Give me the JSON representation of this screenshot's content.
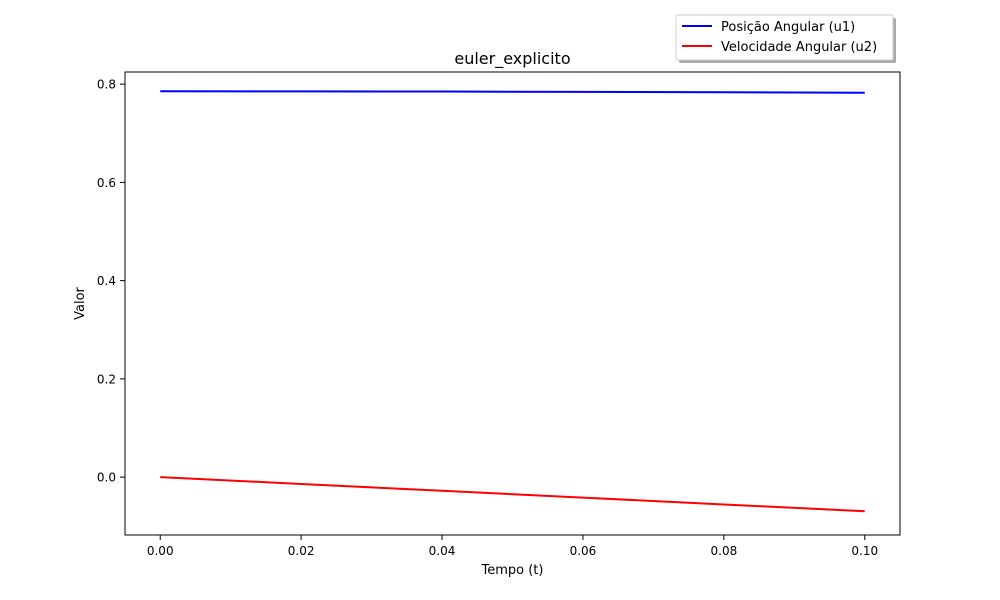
{
  "chart_data": {
    "type": "line",
    "title": "euler_explicito",
    "xlabel": "Tempo (t)",
    "ylabel": "Valor",
    "xlim": [
      -0.005,
      0.105
    ],
    "ylim": [
      -0.1178,
      0.8247
    ],
    "xticks": [
      0.0,
      0.02,
      0.04,
      0.06,
      0.08,
      0.1
    ],
    "xtick_labels": [
      "0.00",
      "0.02",
      "0.04",
      "0.06",
      "0.08",
      "0.10"
    ],
    "yticks": [
      0.0,
      0.2,
      0.4,
      0.6,
      0.8
    ],
    "ytick_labels": [
      "0.0",
      "0.2",
      "0.4",
      "0.6",
      "0.8"
    ],
    "grid": false,
    "legend_position": "upper right, above the axes",
    "series": [
      {
        "name": "Posição Angular (u1)",
        "color": "#0000ff",
        "x": [
          0.0,
          0.02,
          0.04,
          0.06,
          0.08,
          0.1
        ],
        "y": [
          0.7854,
          0.7853,
          0.7849,
          0.7843,
          0.7835,
          0.7824
        ]
      },
      {
        "name": "Velocidade Angular (u2)",
        "color": "#ff0000",
        "x": [
          0.0,
          0.02,
          0.04,
          0.06,
          0.08,
          0.1
        ],
        "y": [
          0.0,
          -0.0139,
          -0.0278,
          -0.0417,
          -0.0556,
          -0.0694
        ]
      }
    ]
  }
}
